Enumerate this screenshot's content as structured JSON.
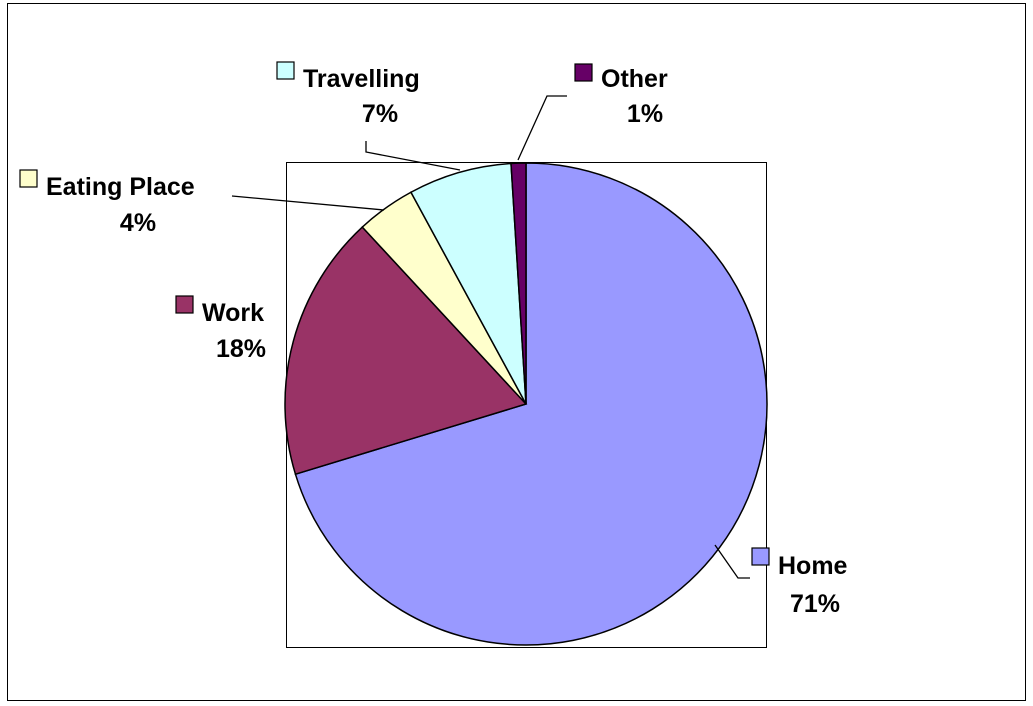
{
  "chart_data": {
    "type": "pie",
    "title": "",
    "start": "top",
    "direction": "clockwise",
    "slices": [
      {
        "name": "Home",
        "value": 71,
        "label": "71%",
        "color": "#9999ff"
      },
      {
        "name": "Work",
        "value": 18,
        "label": "18%",
        "color": "#993366"
      },
      {
        "name": "Eating Place",
        "value": 4,
        "label": "4%",
        "color": "#ffffcc"
      },
      {
        "name": "Travelling",
        "value": 7,
        "label": "7%",
        "color": "#ccffff"
      },
      {
        "name": "Other",
        "value": 1,
        "label": "1%",
        "color": "#660066"
      }
    ]
  }
}
